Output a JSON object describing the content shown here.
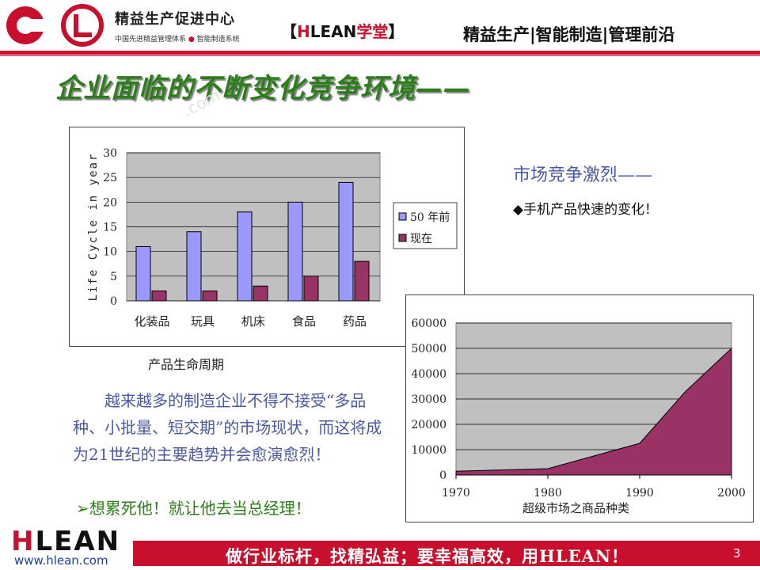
{
  "header": {
    "brand_title": "精益生产促进中心",
    "brand_sub_left": "中国先进精益管理体系",
    "brand_sub_dot": "●",
    "brand_sub_right": "智能制造系统",
    "school_open": "【",
    "school_h": "H",
    "school_lean": "LEAN",
    "school_name": "学堂",
    "school_close": "】",
    "tags": "精益生产|智能制造|管理前沿"
  },
  "slide": {
    "title": "企业面临的不断变化竞争环境——",
    "watermark": ".com",
    "market_title": "市场竞争激烈——",
    "market_bullet": "◆手机产品快速的变化！",
    "paragraph": "越来越多的制造企业不得不接受“多品种、小批量、短交期”的市场现状，而这将成为21世纪的主要趋势并会愈演愈烈！",
    "paragraph_bullet": "➢想累死他！就让他去当总经理！",
    "chart1_caption": "产品生命周期"
  },
  "chart_data": [
    {
      "type": "bar",
      "ylabel": "Life Cycle in year",
      "xlabel": "产品生命周期",
      "categories": [
        "化装品",
        "玩具",
        "机床",
        "食品",
        "药品"
      ],
      "series": [
        {
          "name": "50 年前",
          "values": [
            11,
            14,
            18,
            20,
            24
          ],
          "color": "#9999ff"
        },
        {
          "name": "现在",
          "values": [
            2,
            2,
            3,
            5,
            8
          ],
          "color": "#993366"
        }
      ],
      "ylim": [
        0,
        30
      ],
      "yticks": [
        0,
        5,
        10,
        15,
        20,
        25,
        30
      ],
      "grid": true,
      "legend": "right",
      "plot_bg": "#c0c0c0"
    },
    {
      "type": "area",
      "xlabel": "超级市场之商品种类",
      "x": [
        1970,
        1975,
        1980,
        1985,
        1990,
        1995,
        2000
      ],
      "values": [
        1500,
        2000,
        2500,
        7500,
        12500,
        33000,
        50000
      ],
      "xticks": [
        1970,
        1980,
        1990,
        2000
      ],
      "ylim": [
        0,
        60000
      ],
      "yticks": [
        0,
        10000,
        20000,
        30000,
        40000,
        50000,
        60000
      ],
      "grid": true,
      "fill": "#993366",
      "plot_bg": "#c0c0c0"
    }
  ],
  "footer": {
    "logo_h": "H",
    "logo_rest": "LEAN",
    "url": "www.hlean.com",
    "slogan": "做行业标杆，找精弘益；要幸福高效，用HLEAN！",
    "page_number": "3"
  },
  "colors": {
    "brand_red": "#c8102e",
    "title_green": "#2e7d1c",
    "text_blue": "#4a5aa0"
  }
}
